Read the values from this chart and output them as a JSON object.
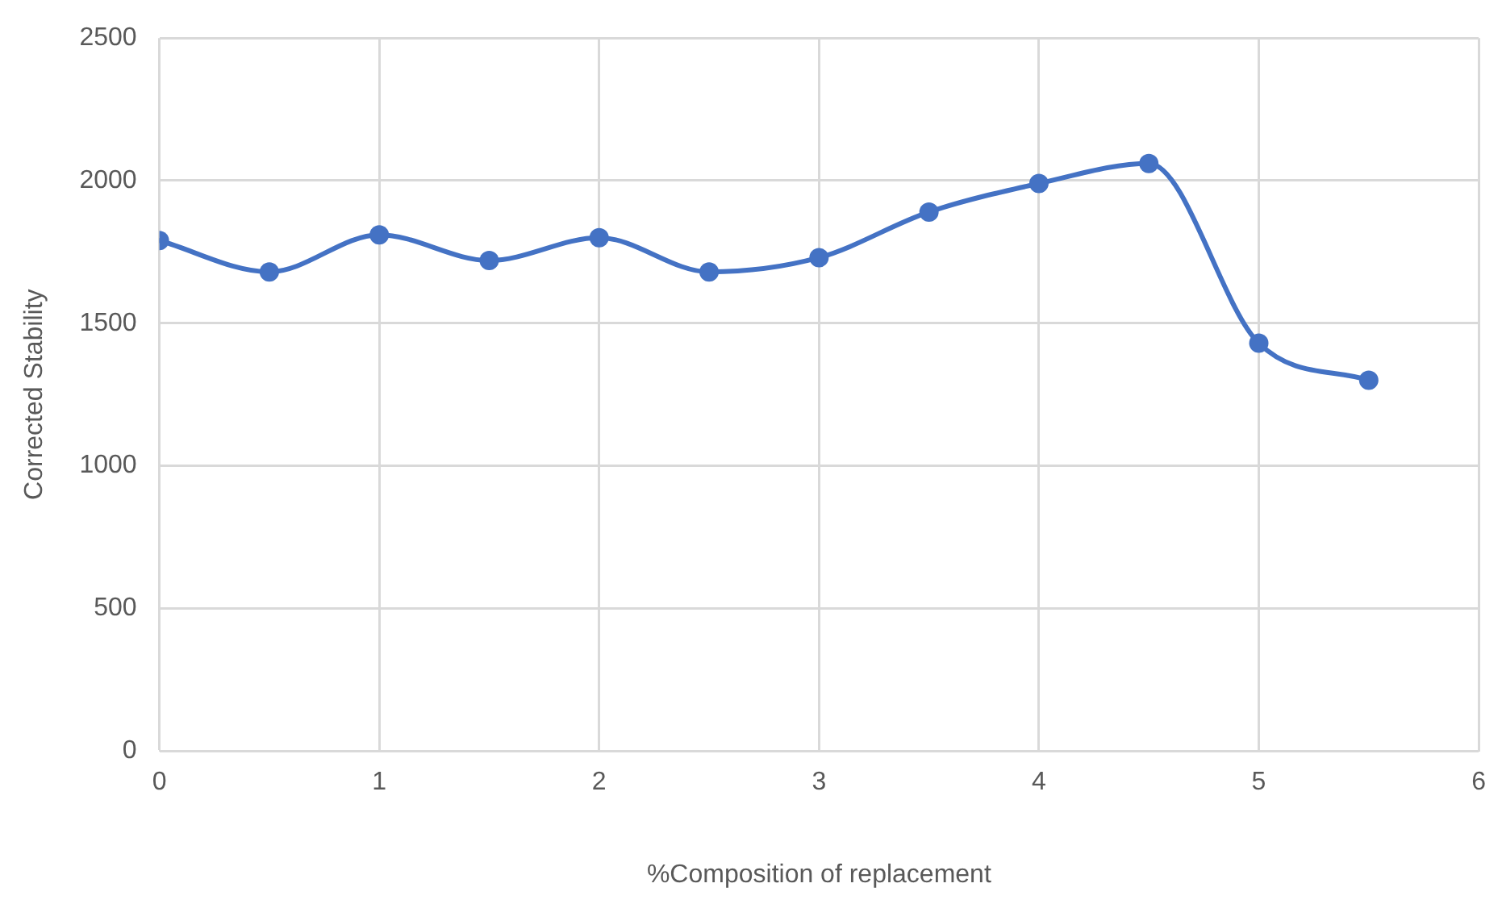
{
  "chart_data": {
    "type": "line",
    "xlabel": "%Composition of replacement",
    "ylabel": "Corrected Stability",
    "x": [
      0,
      0.5,
      1,
      1.5,
      2,
      2.5,
      3,
      3.5,
      4,
      4.5,
      5,
      5.5
    ],
    "series": [
      {
        "color": "#4472c4",
        "values": [
          1790,
          1680,
          1810,
          1720,
          1800,
          1680,
          1730,
          1890,
          1990,
          2060,
          1430,
          1300
        ]
      }
    ],
    "xlim": [
      0,
      6
    ],
    "xticks": [
      0,
      1,
      2,
      3,
      4,
      5,
      6
    ],
    "ylim": [
      0,
      2500
    ],
    "yticks": [
      0,
      500,
      1000,
      1500,
      2000,
      2500
    ],
    "grid": true,
    "legend": false,
    "marker": "circle",
    "line_style": "solid"
  }
}
